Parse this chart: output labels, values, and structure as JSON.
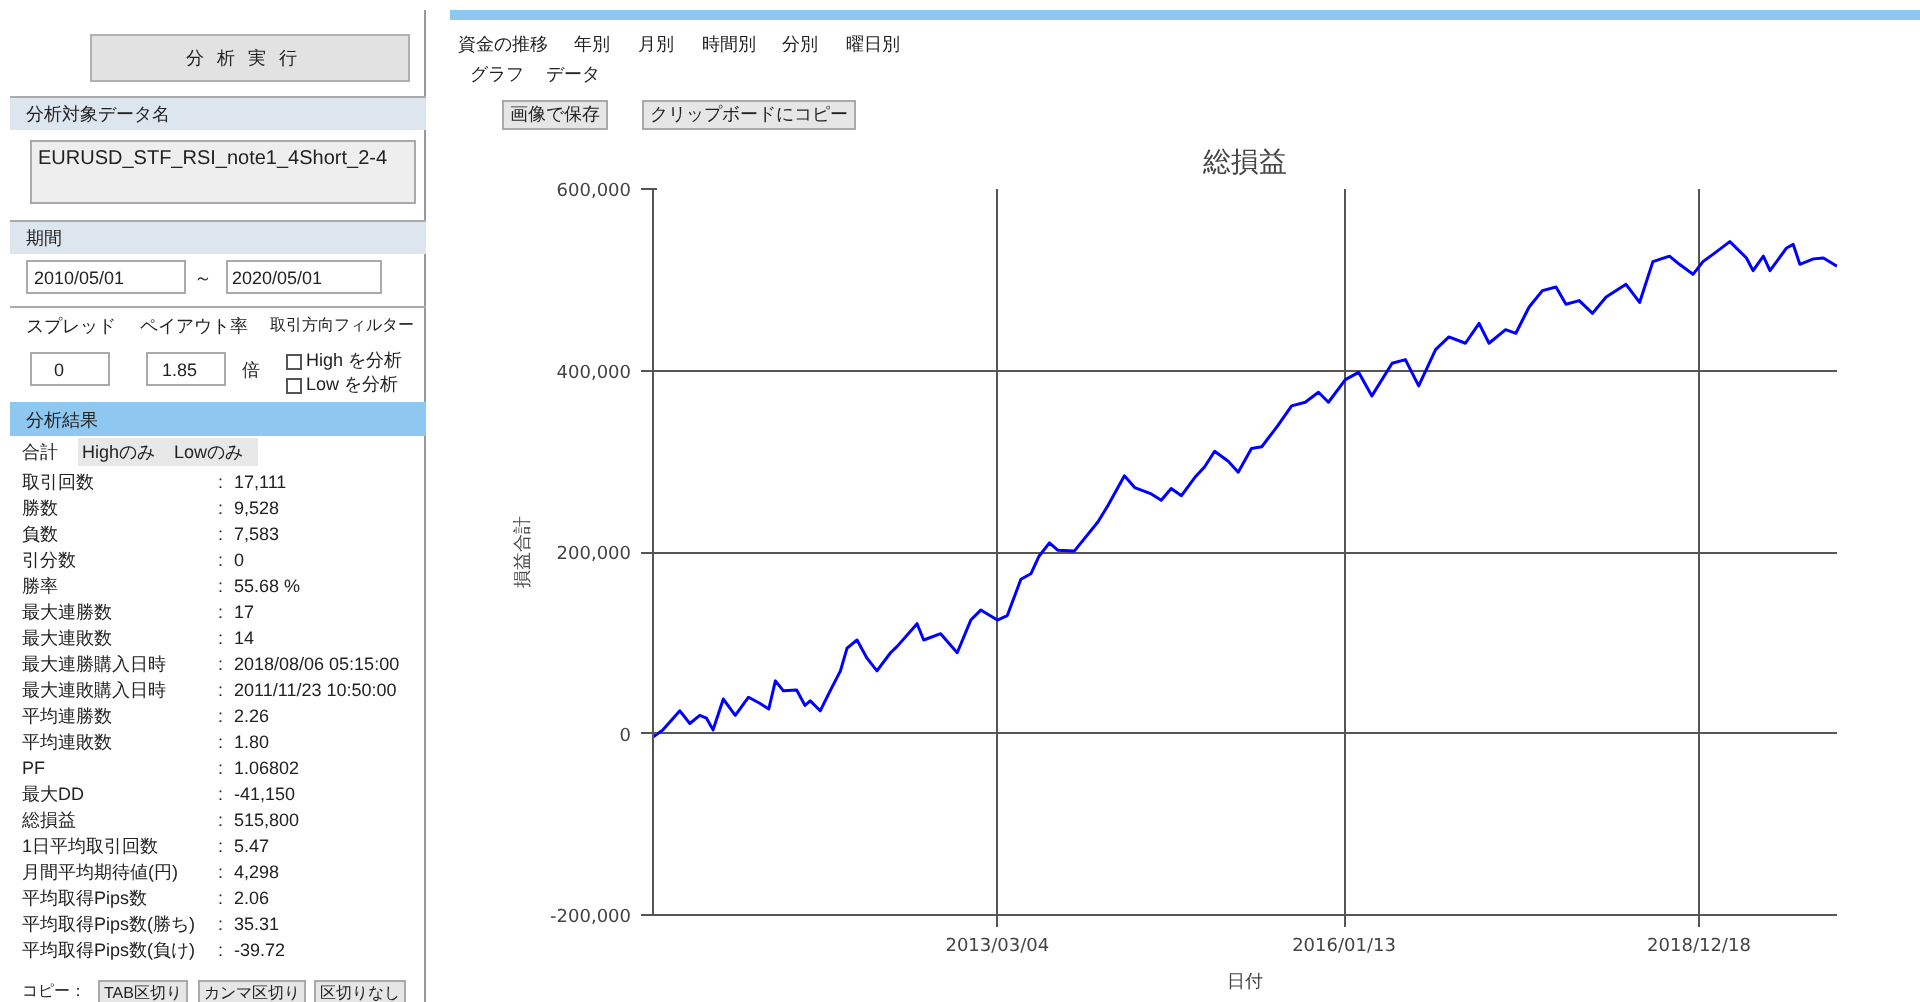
{
  "chart_data": [
    {
      "type": "other",
      "annotations": [
        "分 析 実 行",
        "分析対象データ名",
        "EURUSD_STF_RSI_note1_4Short_2-4",
        "期間",
        "2010/05/01",
        "～",
        "2020/05/01",
        "スプレッド",
        "0",
        "ペイアウト率",
        "1.85",
        "倍",
        "取引方向フィルター",
        "High を分析",
        "Low を分析",
        "分析結果",
        "合計",
        "Highのみ",
        "Lowのみ",
        "取引回数",
        ":",
        "17,111",
        "勝数",
        ":",
        "9,528",
        "負数",
        ":",
        "7,583",
        "引分数",
        ":",
        "0",
        "勝率",
        ":",
        "55.68 %",
        "最大連勝数",
        ":",
        "17",
        "最大連敗数",
        ":",
        "14",
        "最大連勝購入日時",
        ":",
        "2018/08/06 05:15:00",
        "最大連敗購入日時",
        ":",
        "2011/11/23 10:50:00",
        "平均連勝数",
        ":",
        "2.26",
        "平均連敗数",
        ":",
        "1.80",
        "PF",
        ":",
        "1.06802",
        "最大DD",
        ":",
        "-41,150",
        "総損益",
        ":",
        "515,800",
        "1日平均取引回数",
        ":",
        "5.47",
        "月間平均期待値(円)",
        ":",
        "4,298",
        "平均取得Pips数",
        ":",
        "2.06",
        "平均取得Pips数(勝ち)",
        ":",
        "35.31",
        "平均取得Pips数(負け)",
        ":",
        "-39.72",
        "コピー：",
        "TAB区切り",
        "カンマ区切り",
        "区切りなし"
      ]
    },
    {
      "type": "line",
      "title": "総損益",
      "xlabel": "日付",
      "ylabel": "損益合計",
      "annotations": [
        "資金の推移",
        "年別",
        "月別",
        "時間別",
        "分別",
        "曜日別",
        "グラフ",
        "データ",
        "画像で保存",
        "クリップボードにコピー"
      ],
      "x": [
        "2010-05-01",
        "2010-05-31",
        "2010-07-21",
        "2010-08-20",
        "2010-09-19",
        "2010-10-09",
        "2010-10-29",
        "2010-11-29",
        "2011-01-04",
        "2011-02-13",
        "2011-03-20",
        "2011-04-15",
        "2011-05-05",
        "2011-05-29",
        "2011-07-08",
        "2011-08-02",
        "2011-08-18",
        "2011-09-17",
        "2011-10-17",
        "2011-11-17",
        "2011-12-07",
        "2012-01-06",
        "2012-02-05",
        "2012-03-06",
        "2012-04-16",
        "2012-05-06",
        "2012-07-05",
        "2012-07-25",
        "2012-09-14",
        "2012-11-03",
        "2012-12-14",
        "2013-01-13",
        "2013-03-04",
        "2013-04-03",
        "2013-05-14",
        "2013-06-13",
        "2013-07-07",
        "2013-08-08",
        "2013-09-02",
        "2013-10-22",
        "2013-11-11",
        "2014-01-01",
        "2014-01-31",
        "2014-03-22",
        "2014-04-22",
        "2014-06-11",
        "2014-07-11",
        "2014-08-10",
        "2014-09-10",
        "2014-10-20",
        "2014-11-19",
        "2014-12-19",
        "2015-01-29",
        "2015-02-28",
        "2015-04-09",
        "2015-05-10",
        "2015-06-29",
        "2015-08-08",
        "2015-09-18",
        "2015-10-28",
        "2015-11-27",
        "2016-01-17",
        "2016-02-26",
        "2016-04-06",
        "2016-06-06",
        "2016-07-16",
        "2016-08-25",
        "2016-10-15",
        "2016-11-24",
        "2017-01-13",
        "2017-02-23",
        "2017-03-25",
        "2017-05-14",
        "2017-06-14",
        "2017-07-24",
        "2017-09-02",
        "2017-10-13",
        "2017-11-12",
        "2017-12-22",
        "2018-01-31",
        "2018-03-13",
        "2018-05-12",
        "2018-06-22",
        "2018-08-01",
        "2018-09-20",
        "2018-10-20",
        "2018-11-30",
        "2018-12-30",
        "2019-01-29",
        "2019-03-21",
        "2019-05-10",
        "2019-05-30",
        "2019-06-30",
        "2019-07-20",
        "2019-09-08",
        "2019-09-28",
        "2019-10-18",
        "2019-11-28",
        "2019-12-28",
        "2020-02-07"
      ],
      "values": [
        -4000,
        4000,
        25000,
        11000,
        20000,
        17000,
        4000,
        38000,
        20000,
        40000,
        33000,
        27000,
        58000,
        47000,
        48000,
        31000,
        36000,
        25000,
        47000,
        69000,
        94000,
        103000,
        83000,
        69000,
        89000,
        96000,
        121000,
        103000,
        110000,
        89000,
        125000,
        136000,
        125000,
        130000,
        170000,
        176000,
        195000,
        210000,
        202000,
        201000,
        210000,
        233000,
        251000,
        284000,
        271000,
        264000,
        257000,
        270000,
        262000,
        282000,
        294000,
        311000,
        300000,
        288000,
        314000,
        316000,
        340000,
        361000,
        365000,
        376000,
        365000,
        390000,
        398000,
        372000,
        408000,
        412000,
        383000,
        423000,
        437000,
        430000,
        452000,
        430000,
        445000,
        441000,
        470000,
        488000,
        492000,
        473000,
        477000,
        463000,
        481000,
        495000,
        475000,
        520000,
        526000,
        517000,
        506000,
        520000,
        528000,
        542000,
        524000,
        510000,
        526000,
        510000,
        535000,
        539000,
        517000,
        523000,
        524000,
        515000
      ],
      "color": "#0000ff",
      "xlim": [
        "2010-05-01",
        "2020-02-07"
      ],
      "xticks": [
        {
          "value": "2013-03-04",
          "label": "2013/03/04"
        },
        {
          "value": "2016-01-13",
          "label": "2016/01/13"
        },
        {
          "value": "2018-12-18",
          "label": "2018/12/18"
        }
      ],
      "ylim": [
        -200000,
        600000
      ],
      "yticks": [
        {
          "value": -200000,
          "label": "-200,000"
        },
        0,
        {
          "value": 200000,
          "label": "200,000"
        },
        {
          "value": 400000,
          "label": "400,000"
        },
        {
          "value": 600000,
          "label": "600,000"
        }
      ],
      "grid": true
    }
  ]
}
